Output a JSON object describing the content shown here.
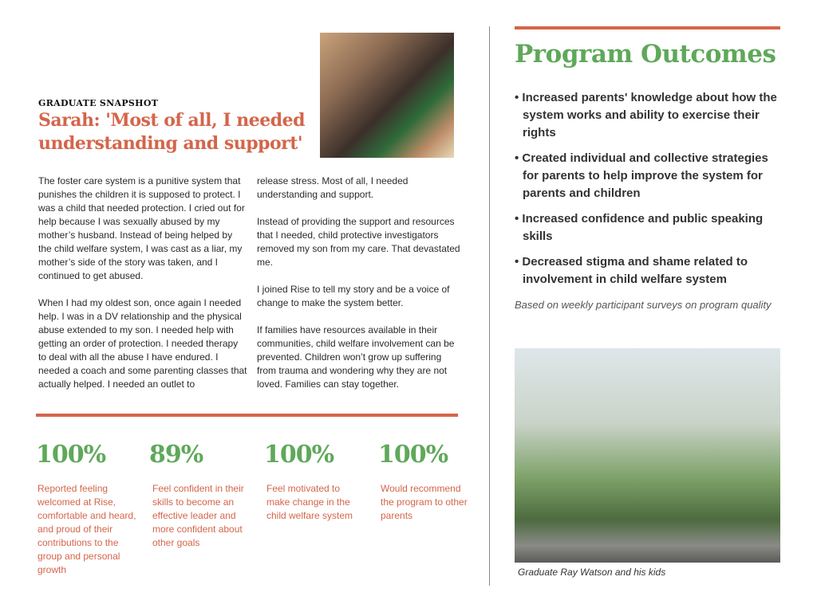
{
  "snapshot": {
    "kicker": "GRADUATE SNAPSHOT",
    "headline": "Sarah: 'Most of all, I needed understanding and support'",
    "col1": [
      "The foster care system is a punitive system that punishes the children it is supposed to protect. I was a child that needed protection. I cried out for help because I was sexually abused by my mother’s husband. Instead of being helped by the child welfare system, I was cast as a liar, my mother’s side of the story was taken, and I continued to get abused.",
      "When I had my oldest son, once again I needed help. I was in a DV relationship and the physical abuse extended to my son. I needed help with getting an order of protection. I needed therapy to deal with all the abuse I have endured. I needed a coach and some parenting classes that actually helped. I needed an outlet to"
    ],
    "col2": [
      "release stress. Most of all, I needed understanding and support.",
      "Instead of providing the support and resources that I needed, child protective investigators removed my son from my care. That devastated me.",
      "I joined Rise to tell my story and be a voice of change to make the system better.",
      "If families have resources available in their communities, child welfare involvement can be prevented. Children won’t grow up suffering from trauma and wondering why they are not loved. Families can stay together."
    ]
  },
  "stats": [
    {
      "value": "100%",
      "label": "Reported feeling welcomed at Rise, comfortable and heard, and proud of their contributions to the group and personal growth"
    },
    {
      "value": "89%",
      "label": "Feel confident in their skills to become an effective leader and more confident about other goals"
    },
    {
      "value": "100%",
      "label": "Feel motivated to make change in the child welfare system"
    },
    {
      "value": "100%",
      "label": "Would recommend the program to other parents"
    }
  ],
  "outcomes": {
    "title": "Program Outcomes",
    "items": [
      "• Increased parents' knowledge about how the system works and ability to exercise their rights",
      "• Created individual and collective strategies for parents to help improve the system for parents and children",
      "• Increased confidence and public speaking skills",
      "• Decreased stigma and shame related to involvement in child welfare system"
    ],
    "note": "Based on weekly participant surveys on program quality",
    "caption": "Graduate Ray Watson and his kids"
  },
  "colors": {
    "accent": "#d4654a",
    "green": "#5fa85a"
  }
}
